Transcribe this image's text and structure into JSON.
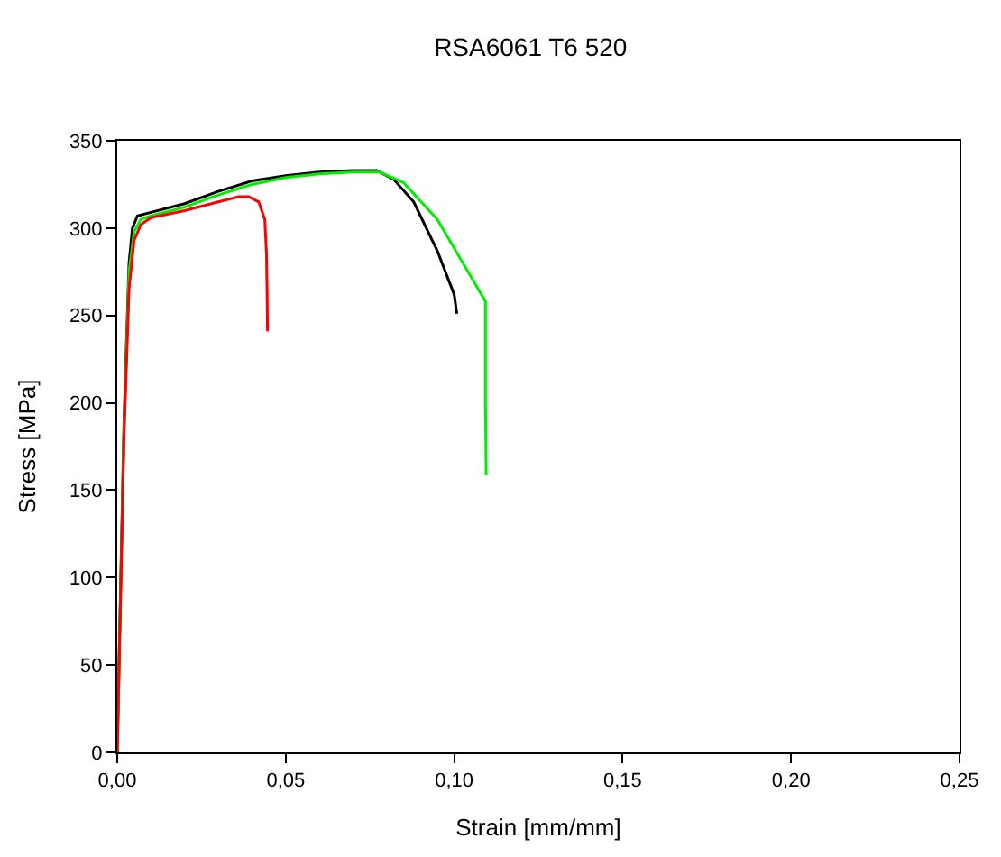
{
  "chart_data": {
    "type": "line",
    "title": "RSA6061 T6 520",
    "xlabel": "Strain [mm/mm]",
    "ylabel": "Stress [MPa]",
    "xlim": [
      0,
      0.25
    ],
    "ylim": [
      0,
      350
    ],
    "xticks": [
      {
        "value": 0,
        "label": "0,00"
      },
      {
        "value": 0.05,
        "label": "0,05"
      },
      {
        "value": 0.1,
        "label": "0,10"
      },
      {
        "value": 0.15,
        "label": "0,15"
      },
      {
        "value": 0.2,
        "label": "0,20"
      },
      {
        "value": 0.25,
        "label": "0,25"
      }
    ],
    "yticks": [
      0,
      50,
      100,
      150,
      200,
      250,
      300,
      350
    ],
    "marker": "none",
    "line_style": "solid",
    "series": [
      {
        "color": "#000000",
        "x": [
          0,
          0.002,
          0.0035,
          0.0045,
          0.006,
          0.01,
          0.02,
          0.03,
          0.04,
          0.05,
          0.06,
          0.07,
          0.077,
          0.082,
          0.088,
          0.095,
          0.1,
          0.1008
        ],
        "values": [
          0,
          190,
          280,
          300,
          307,
          309,
          314,
          321,
          327,
          330,
          332,
          333,
          333,
          328,
          315,
          287,
          262,
          251
        ]
      },
      {
        "color": "#00ee00",
        "x": [
          0,
          0.002,
          0.0035,
          0.005,
          0.007,
          0.01,
          0.02,
          0.03,
          0.04,
          0.05,
          0.06,
          0.07,
          0.078,
          0.085,
          0.095,
          0.102,
          0.1093,
          0.1093,
          0.1095
        ],
        "values": [
          0,
          185,
          275,
          298,
          305,
          307,
          312,
          319,
          325,
          329,
          331,
          332,
          332,
          326,
          305,
          282,
          258,
          200,
          159
        ]
      },
      {
        "color": "#ff0000",
        "x": [
          0,
          0.002,
          0.0035,
          0.005,
          0.007,
          0.01,
          0.02,
          0.03,
          0.036,
          0.039,
          0.042,
          0.0438,
          0.0443,
          0.0445,
          0.0446
        ],
        "values": [
          0,
          180,
          265,
          293,
          302,
          306,
          310,
          315,
          318,
          318,
          315,
          305,
          285,
          260,
          241
        ]
      }
    ]
  }
}
